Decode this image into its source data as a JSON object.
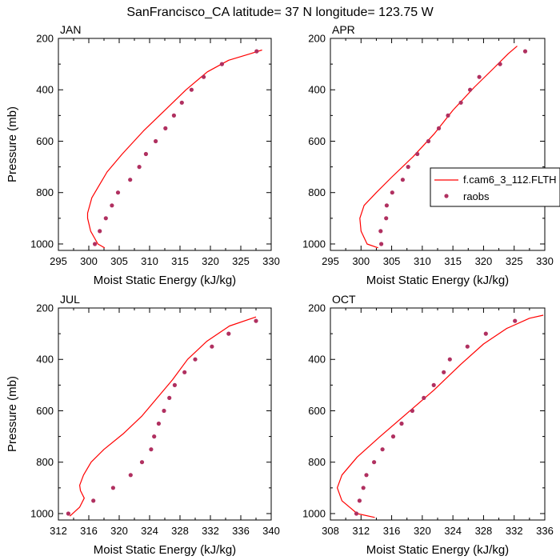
{
  "title": "SanFrancisco_CA  latitude= 37 N longitude= 123.75 W",
  "colors": {
    "model": "#ff0000",
    "obs": "#b03060"
  },
  "legend": {
    "model_label": "f.cam6_3_112.FLTH",
    "obs_label": "raobs"
  },
  "chart_data": [
    {
      "type": "line",
      "title": "JAN",
      "xlabel": "Moist Static Energy (kJ/kg)",
      "ylabel": "Pressure (mb)",
      "xlim": [
        295,
        330
      ],
      "ylim": [
        200,
        1025
      ],
      "y_inverted": true,
      "xticks": [
        295,
        300,
        305,
        310,
        315,
        320,
        325,
        330
      ],
      "yticks": [
        200,
        400,
        600,
        800,
        1000
      ],
      "series": [
        {
          "name": "f.cam6_3_112.FLTH",
          "style": "line",
          "points": [
            [
              302.6,
              1015
            ],
            [
              301.5,
              1000
            ],
            [
              300.3,
              950
            ],
            [
              299.8,
              900
            ],
            [
              299.8,
              880
            ],
            [
              300.5,
              820
            ],
            [
              301.5,
              780
            ],
            [
              303.0,
              720
            ],
            [
              305.5,
              650
            ],
            [
              309.0,
              560
            ],
            [
              312.5,
              480
            ],
            [
              316.0,
              400
            ],
            [
              319.5,
              330
            ],
            [
              323.0,
              285
            ],
            [
              326.5,
              260
            ],
            [
              328.5,
              245
            ]
          ]
        },
        {
          "name": "raobs",
          "style": "markers",
          "points": [
            [
              301.0,
              1000
            ],
            [
              301.8,
              950
            ],
            [
              302.8,
              900
            ],
            [
              303.8,
              850
            ],
            [
              304.8,
              800
            ],
            [
              306.8,
              750
            ],
            [
              308.3,
              700
            ],
            [
              309.4,
              650
            ],
            [
              311.0,
              600
            ],
            [
              312.6,
              550
            ],
            [
              314.0,
              500
            ],
            [
              315.3,
              450
            ],
            [
              316.9,
              400
            ],
            [
              318.9,
              350
            ],
            [
              321.9,
              300
            ],
            [
              327.6,
              250
            ]
          ]
        }
      ]
    },
    {
      "type": "line",
      "title": "APR",
      "xlabel": "Moist Static Energy (kJ/kg)",
      "ylabel": "Pressure (mb)",
      "xlim": [
        295,
        330
      ],
      "ylim": [
        200,
        1025
      ],
      "y_inverted": true,
      "xticks": [
        295,
        300,
        305,
        310,
        315,
        320,
        325,
        330
      ],
      "yticks": [
        200,
        400,
        600,
        800,
        1000
      ],
      "series": [
        {
          "name": "f.cam6_3_112.FLTH",
          "style": "line",
          "points": [
            [
              302.8,
              1015
            ],
            [
              301.0,
              1000
            ],
            [
              300.0,
              950
            ],
            [
              299.8,
              900
            ],
            [
              300.5,
              850
            ],
            [
              302.5,
              800
            ],
            [
              305.0,
              740
            ],
            [
              308.5,
              660
            ],
            [
              312.0,
              570
            ],
            [
              315.0,
              480
            ],
            [
              318.5,
              390
            ],
            [
              321.5,
              320
            ],
            [
              324.0,
              260
            ],
            [
              325.5,
              230
            ]
          ]
        },
        {
          "name": "raobs",
          "style": "markers",
          "points": [
            [
              303.3,
              1000
            ],
            [
              303.2,
              950
            ],
            [
              304.1,
              900
            ],
            [
              304.2,
              850
            ],
            [
              305.1,
              800
            ],
            [
              306.8,
              750
            ],
            [
              307.7,
              700
            ],
            [
              309.2,
              650
            ],
            [
              311.0,
              600
            ],
            [
              312.7,
              550
            ],
            [
              314.2,
              500
            ],
            [
              316.3,
              450
            ],
            [
              317.8,
              400
            ],
            [
              319.3,
              350
            ],
            [
              322.7,
              300
            ],
            [
              326.8,
              250
            ]
          ]
        }
      ]
    },
    {
      "type": "line",
      "title": "JUL",
      "xlabel": "Moist Static Energy (kJ/kg)",
      "ylabel": "Pressure (mb)",
      "xlim": [
        312,
        340
      ],
      "ylim": [
        200,
        1025
      ],
      "y_inverted": true,
      "xticks": [
        312,
        316,
        320,
        324,
        328,
        332,
        336,
        340
      ],
      "yticks": [
        200,
        400,
        600,
        800,
        1000
      ],
      "series": [
        {
          "name": "f.cam6_3_112.FLTH",
          "style": "line",
          "points": [
            [
              313.5,
              1010
            ],
            [
              314.8,
              975
            ],
            [
              315.4,
              940
            ],
            [
              314.9,
              910
            ],
            [
              314.8,
              890
            ],
            [
              315.3,
              850
            ],
            [
              316.3,
              800
            ],
            [
              318.0,
              750
            ],
            [
              320.5,
              690
            ],
            [
              323.0,
              620
            ],
            [
              325.0,
              550
            ],
            [
              327.0,
              480
            ],
            [
              329.0,
              400
            ],
            [
              331.5,
              330
            ],
            [
              334.5,
              270
            ],
            [
              338.0,
              235
            ]
          ]
        },
        {
          "name": "raobs",
          "style": "markers",
          "points": [
            [
              313.3,
              1000
            ],
            [
              316.6,
              950
            ],
            [
              319.2,
              900
            ],
            [
              321.5,
              850
            ],
            [
              323.0,
              800
            ],
            [
              324.2,
              750
            ],
            [
              324.6,
              700
            ],
            [
              325.2,
              650
            ],
            [
              325.9,
              600
            ],
            [
              326.6,
              550
            ],
            [
              327.3,
              500
            ],
            [
              328.6,
              450
            ],
            [
              330.0,
              400
            ],
            [
              332.2,
              350
            ],
            [
              334.4,
              300
            ],
            [
              338.0,
              250
            ]
          ]
        }
      ]
    },
    {
      "type": "line",
      "title": "OCT",
      "xlabel": "Moist Static Energy (kJ/kg)",
      "ylabel": "Pressure (mb)",
      "xlim": [
        308,
        336
      ],
      "ylim": [
        200,
        1025
      ],
      "y_inverted": true,
      "xticks": [
        308,
        312,
        316,
        320,
        324,
        328,
        332,
        336
      ],
      "yticks": [
        200,
        400,
        600,
        800,
        1000
      ],
      "series": [
        {
          "name": "f.cam6_3_112.FLTH",
          "style": "line",
          "points": [
            [
              313.8,
              1015
            ],
            [
              311.5,
              1000
            ],
            [
              309.5,
              950
            ],
            [
              308.9,
              900
            ],
            [
              309.5,
              850
            ],
            [
              311.5,
              780
            ],
            [
              314.5,
              700
            ],
            [
              318.0,
              610
            ],
            [
              321.5,
              520
            ],
            [
              325.0,
              420
            ],
            [
              328.0,
              340
            ],
            [
              331.0,
              280
            ],
            [
              334.0,
              240
            ],
            [
              335.8,
              228
            ]
          ]
        },
        {
          "name": "raobs",
          "style": "markers",
          "points": [
            [
              311.4,
              1000
            ],
            [
              311.8,
              950
            ],
            [
              312.3,
              900
            ],
            [
              312.7,
              850
            ],
            [
              313.7,
              800
            ],
            [
              314.8,
              750
            ],
            [
              316.2,
              700
            ],
            [
              317.3,
              650
            ],
            [
              318.7,
              600
            ],
            [
              320.2,
              550
            ],
            [
              321.5,
              500
            ],
            [
              322.8,
              450
            ],
            [
              323.6,
              400
            ],
            [
              325.9,
              350
            ],
            [
              328.3,
              300
            ],
            [
              332.1,
              250
            ]
          ]
        }
      ]
    }
  ]
}
